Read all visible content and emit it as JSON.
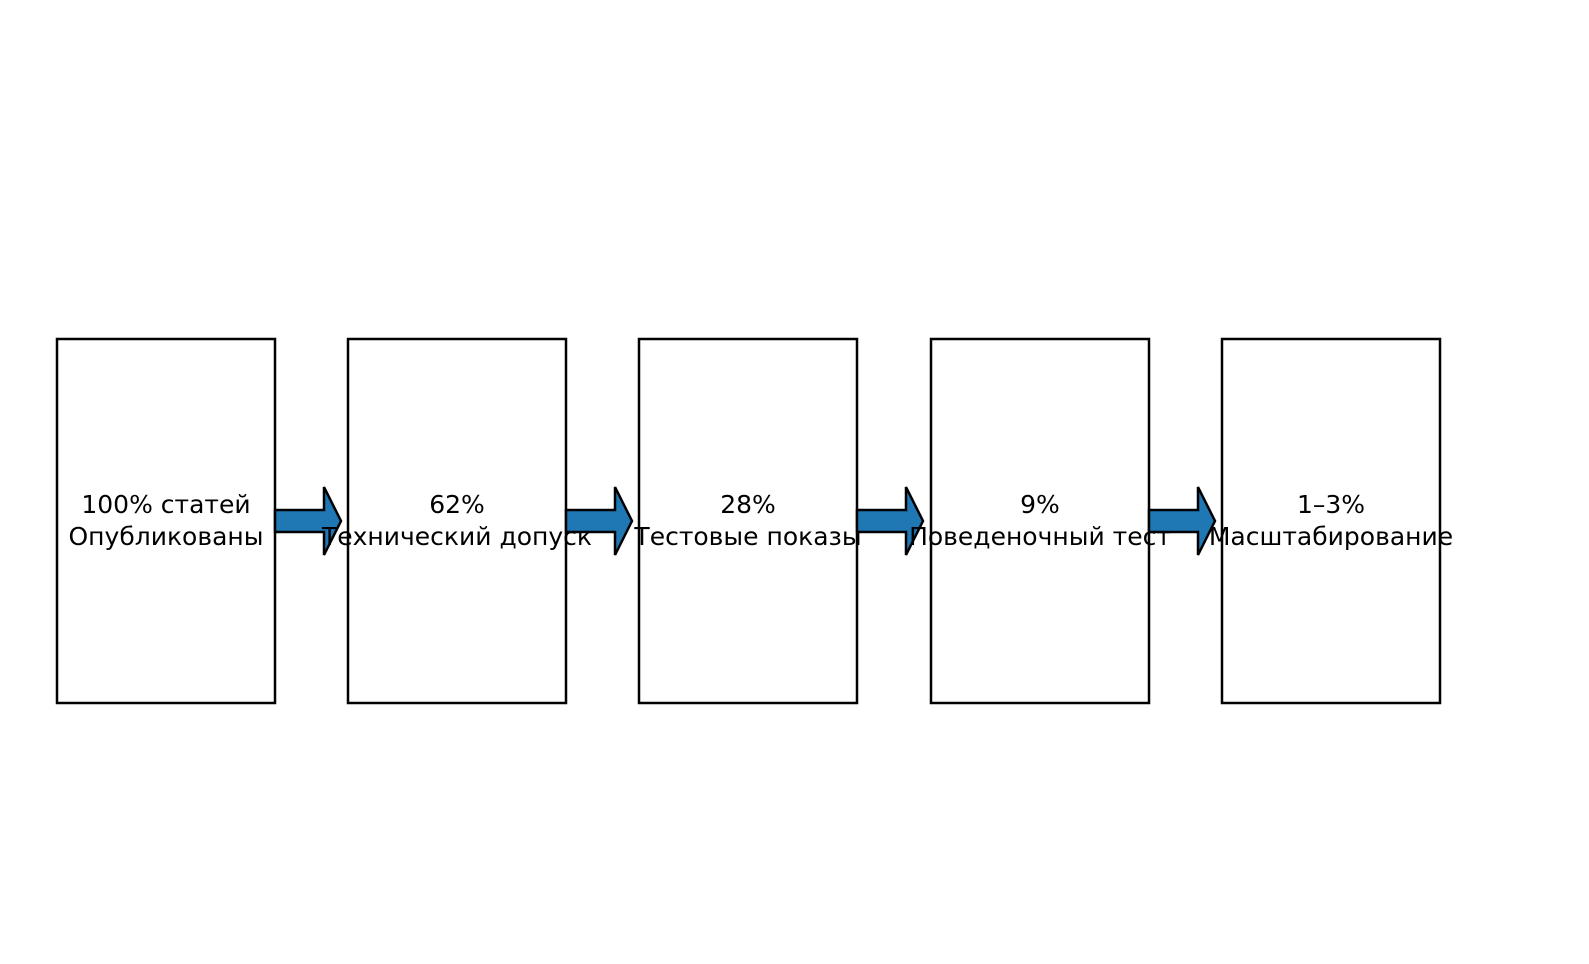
{
  "arrow_color": "#1f77b4",
  "stages": [
    {
      "value": "100% статей",
      "label": "Опубликованы"
    },
    {
      "value": "62%",
      "label": "Технический допуск"
    },
    {
      "value": "28%",
      "label": "Тестовые показы"
    },
    {
      "value": "9%",
      "label": "Поведеночный тест"
    },
    {
      "value": "1–3%",
      "label": "Масштабирование"
    }
  ]
}
